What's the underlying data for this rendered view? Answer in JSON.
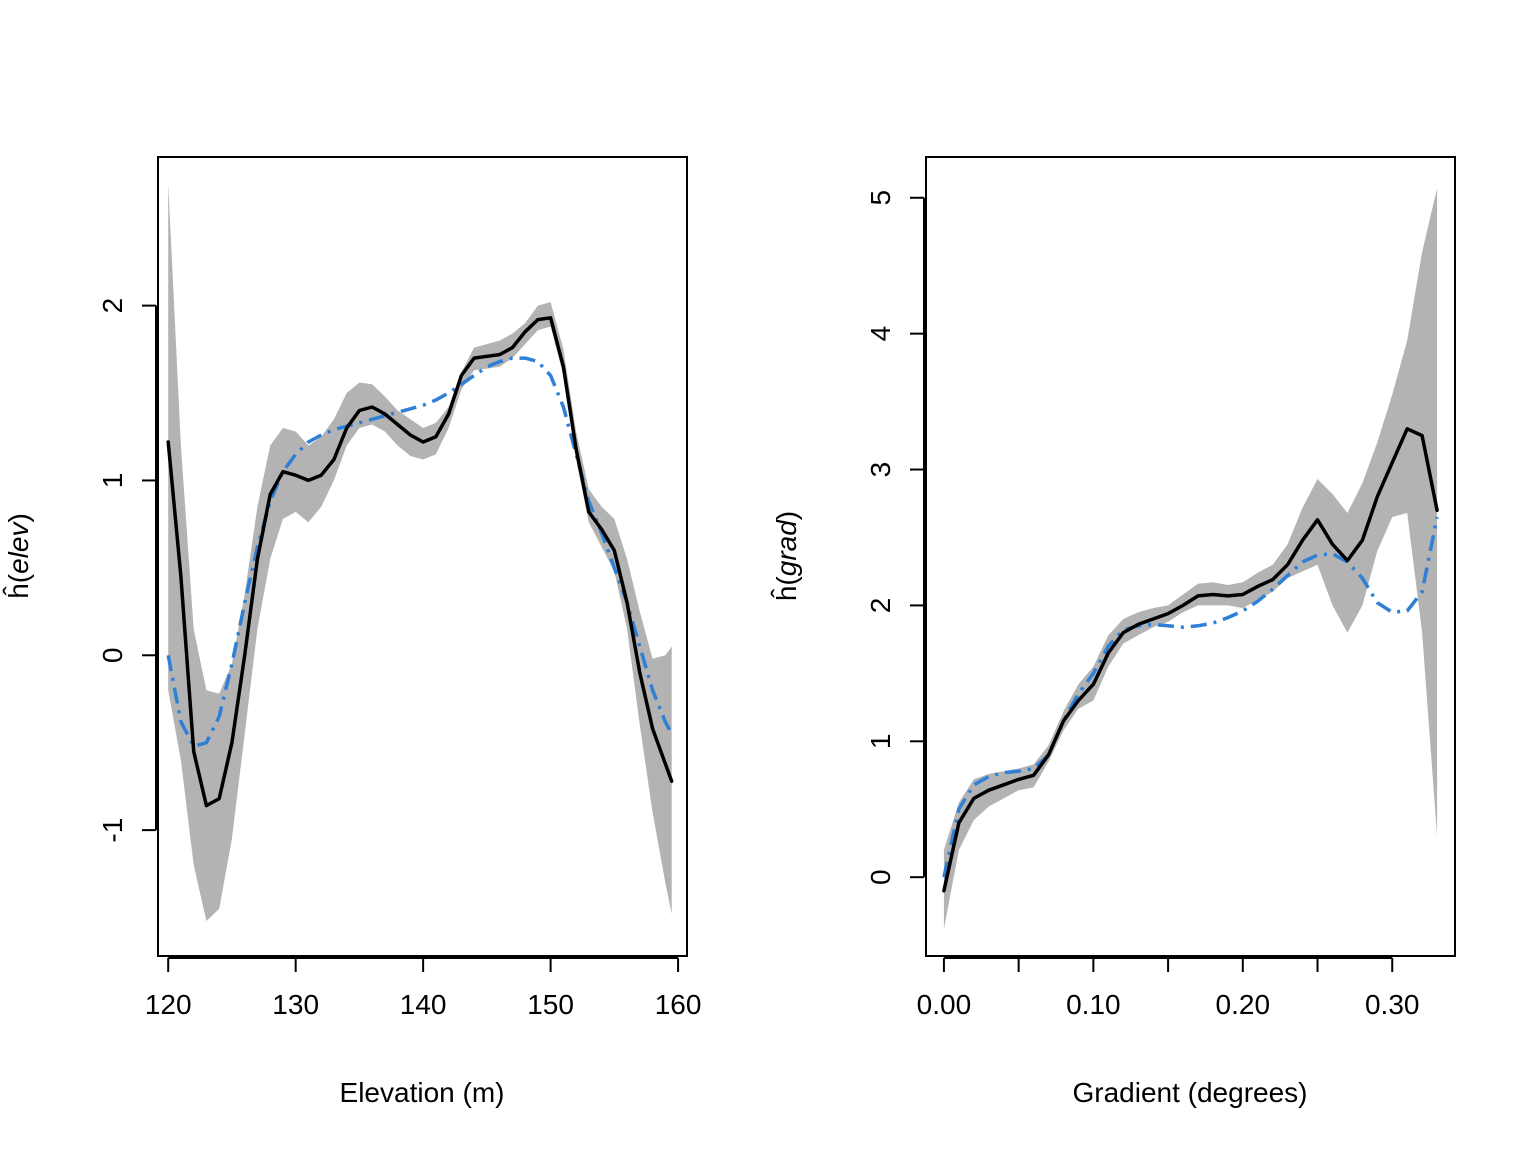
{
  "colors": {
    "band": "#b3b3b3",
    "estimate": "#000000",
    "reference": "#2e7fd6"
  },
  "chart_data": [
    {
      "type": "line",
      "xlabel": "Elevation (m)",
      "ylabel": {
        "fn": "ĥ(",
        "arg": "elev",
        "close": ")"
      },
      "xlim": [
        119.2,
        160.7
      ],
      "ylim": [
        -1.72,
        2.85
      ],
      "xticks": [
        120,
        130,
        140,
        150,
        160
      ],
      "xtick_labels": [
        "120",
        "130",
        "140",
        "150",
        "160"
      ],
      "yticks": [
        -1,
        0,
        1,
        2
      ],
      "ytick_labels": [
        "-1",
        "0",
        "1",
        "2"
      ],
      "grid": false,
      "legend": "none",
      "band": {
        "x": [
          120,
          121,
          122,
          123,
          124,
          125,
          126,
          127,
          128,
          129,
          130,
          131,
          132,
          133,
          134,
          135,
          136,
          137,
          138,
          139,
          140,
          141,
          142,
          143,
          144,
          145,
          146,
          147,
          148,
          149,
          150,
          151,
          152,
          153,
          154,
          155,
          156,
          157,
          158,
          159,
          159.5
        ],
        "upper": [
          2.7,
          1.2,
          0.15,
          -0.2,
          -0.22,
          -0.05,
          0.35,
          0.85,
          1.2,
          1.3,
          1.28,
          1.2,
          1.25,
          1.35,
          1.5,
          1.56,
          1.55,
          1.48,
          1.4,
          1.35,
          1.3,
          1.33,
          1.42,
          1.62,
          1.76,
          1.78,
          1.8,
          1.84,
          1.9,
          2.0,
          2.02,
          1.75,
          1.28,
          0.95,
          0.85,
          0.78,
          0.55,
          0.25,
          -0.02,
          0.0,
          0.05
        ],
        "lower": [
          -0.2,
          -0.6,
          -1.2,
          -1.52,
          -1.45,
          -1.05,
          -0.45,
          0.15,
          0.55,
          0.78,
          0.82,
          0.76,
          0.85,
          1.0,
          1.2,
          1.3,
          1.32,
          1.28,
          1.2,
          1.14,
          1.12,
          1.15,
          1.3,
          1.52,
          1.63,
          1.64,
          1.65,
          1.7,
          1.78,
          1.86,
          1.88,
          1.6,
          1.12,
          0.76,
          0.62,
          0.48,
          0.15,
          -0.4,
          -0.9,
          -1.3,
          -1.48
        ]
      },
      "series": [
        {
          "style": "solid",
          "x": [
            120,
            121,
            122,
            123,
            124,
            125,
            126,
            127,
            128,
            129,
            130,
            131,
            132,
            133,
            134,
            135,
            136,
            137,
            138,
            139,
            140,
            141,
            142,
            143,
            144,
            145,
            146,
            147,
            148,
            149,
            150,
            151,
            152,
            153,
            154,
            155,
            156,
            157,
            158,
            159,
            159.5
          ],
          "values": [
            1.22,
            0.45,
            -0.55,
            -0.86,
            -0.82,
            -0.5,
            0.0,
            0.55,
            0.92,
            1.05,
            1.03,
            1.0,
            1.03,
            1.12,
            1.3,
            1.4,
            1.42,
            1.38,
            1.32,
            1.26,
            1.22,
            1.25,
            1.38,
            1.6,
            1.7,
            1.71,
            1.72,
            1.76,
            1.85,
            1.92,
            1.93,
            1.65,
            1.18,
            0.82,
            0.72,
            0.6,
            0.3,
            -0.1,
            -0.42,
            -0.62,
            -0.72
          ]
        },
        {
          "style": "dashdot",
          "x": [
            120,
            121,
            122,
            123,
            124,
            125,
            126,
            127,
            128,
            129,
            130,
            131,
            132,
            133,
            134,
            135,
            136,
            137,
            138,
            139,
            140,
            141,
            142,
            143,
            144,
            145,
            146,
            147,
            148,
            149,
            150,
            151,
            152,
            153,
            154,
            155,
            156,
            157,
            158,
            159,
            159.5
          ],
          "values": [
            0.0,
            -0.38,
            -0.52,
            -0.5,
            -0.35,
            -0.05,
            0.3,
            0.62,
            0.88,
            1.05,
            1.15,
            1.22,
            1.26,
            1.29,
            1.31,
            1.33,
            1.35,
            1.37,
            1.39,
            1.41,
            1.43,
            1.46,
            1.5,
            1.55,
            1.6,
            1.65,
            1.68,
            1.7,
            1.7,
            1.68,
            1.6,
            1.42,
            1.15,
            0.88,
            0.7,
            0.5,
            0.3,
            0.05,
            -0.2,
            -0.38,
            -0.45
          ]
        }
      ]
    },
    {
      "type": "line",
      "xlabel": "Gradient (degrees)",
      "ylabel": {
        "fn": "ĥ(",
        "arg": "grad",
        "close": ")"
      },
      "xlim": [
        -0.012,
        0.342
      ],
      "ylim": [
        -0.58,
        5.3
      ],
      "xticks": [
        0.0,
        0.05,
        0.1,
        0.15,
        0.2,
        0.25,
        0.3
      ],
      "xtick_labels": [
        "0.00",
        "",
        "0.10",
        "",
        "0.20",
        "",
        "0.30"
      ],
      "yticks": [
        0,
        1,
        2,
        3,
        4,
        5
      ],
      "ytick_labels": [
        "0",
        "1",
        "2",
        "3",
        "4",
        "5"
      ],
      "grid": false,
      "legend": "none",
      "band": {
        "x": [
          0.0,
          0.01,
          0.02,
          0.03,
          0.04,
          0.05,
          0.06,
          0.07,
          0.08,
          0.09,
          0.1,
          0.11,
          0.12,
          0.13,
          0.14,
          0.15,
          0.16,
          0.17,
          0.18,
          0.19,
          0.2,
          0.21,
          0.22,
          0.23,
          0.24,
          0.25,
          0.26,
          0.27,
          0.28,
          0.29,
          0.3,
          0.31,
          0.32,
          0.33
        ],
        "upper": [
          0.2,
          0.55,
          0.72,
          0.76,
          0.78,
          0.8,
          0.83,
          0.97,
          1.22,
          1.42,
          1.55,
          1.78,
          1.9,
          1.95,
          1.98,
          2.0,
          2.08,
          2.16,
          2.17,
          2.15,
          2.17,
          2.24,
          2.3,
          2.45,
          2.72,
          2.93,
          2.82,
          2.68,
          2.9,
          3.2,
          3.55,
          3.95,
          4.6,
          5.07
        ],
        "lower": [
          -0.38,
          0.2,
          0.42,
          0.52,
          0.58,
          0.64,
          0.66,
          0.85,
          1.08,
          1.24,
          1.3,
          1.55,
          1.72,
          1.78,
          1.84,
          1.88,
          1.95,
          2.0,
          2.0,
          2.0,
          1.98,
          2.04,
          2.1,
          2.2,
          2.25,
          2.3,
          2.0,
          1.8,
          2.0,
          2.4,
          2.65,
          2.68,
          1.8,
          0.3
        ]
      },
      "series": [
        {
          "style": "solid",
          "x": [
            0.0,
            0.01,
            0.02,
            0.03,
            0.04,
            0.05,
            0.06,
            0.07,
            0.08,
            0.09,
            0.1,
            0.11,
            0.12,
            0.13,
            0.14,
            0.15,
            0.16,
            0.17,
            0.18,
            0.19,
            0.2,
            0.21,
            0.22,
            0.23,
            0.24,
            0.25,
            0.26,
            0.27,
            0.28,
            0.29,
            0.3,
            0.31,
            0.32,
            0.33
          ],
          "values": [
            -0.1,
            0.4,
            0.58,
            0.64,
            0.68,
            0.72,
            0.75,
            0.9,
            1.15,
            1.3,
            1.42,
            1.65,
            1.8,
            1.86,
            1.9,
            1.94,
            2.0,
            2.07,
            2.08,
            2.07,
            2.08,
            2.14,
            2.19,
            2.3,
            2.48,
            2.63,
            2.45,
            2.33,
            2.48,
            2.8,
            3.05,
            3.3,
            3.25,
            2.7
          ]
        },
        {
          "style": "dashdot",
          "x": [
            0.0,
            0.01,
            0.02,
            0.03,
            0.04,
            0.05,
            0.06,
            0.07,
            0.08,
            0.09,
            0.1,
            0.11,
            0.12,
            0.13,
            0.14,
            0.15,
            0.16,
            0.17,
            0.18,
            0.19,
            0.2,
            0.21,
            0.22,
            0.23,
            0.24,
            0.25,
            0.26,
            0.27,
            0.28,
            0.29,
            0.3,
            0.31,
            0.32,
            0.33
          ],
          "values": [
            0.0,
            0.5,
            0.68,
            0.74,
            0.77,
            0.78,
            0.8,
            0.9,
            1.15,
            1.35,
            1.5,
            1.7,
            1.82,
            1.85,
            1.86,
            1.85,
            1.84,
            1.85,
            1.87,
            1.91,
            1.96,
            2.03,
            2.12,
            2.22,
            2.32,
            2.37,
            2.38,
            2.32,
            2.2,
            2.02,
            1.95,
            1.96,
            2.1,
            2.65
          ]
        }
      ]
    }
  ]
}
